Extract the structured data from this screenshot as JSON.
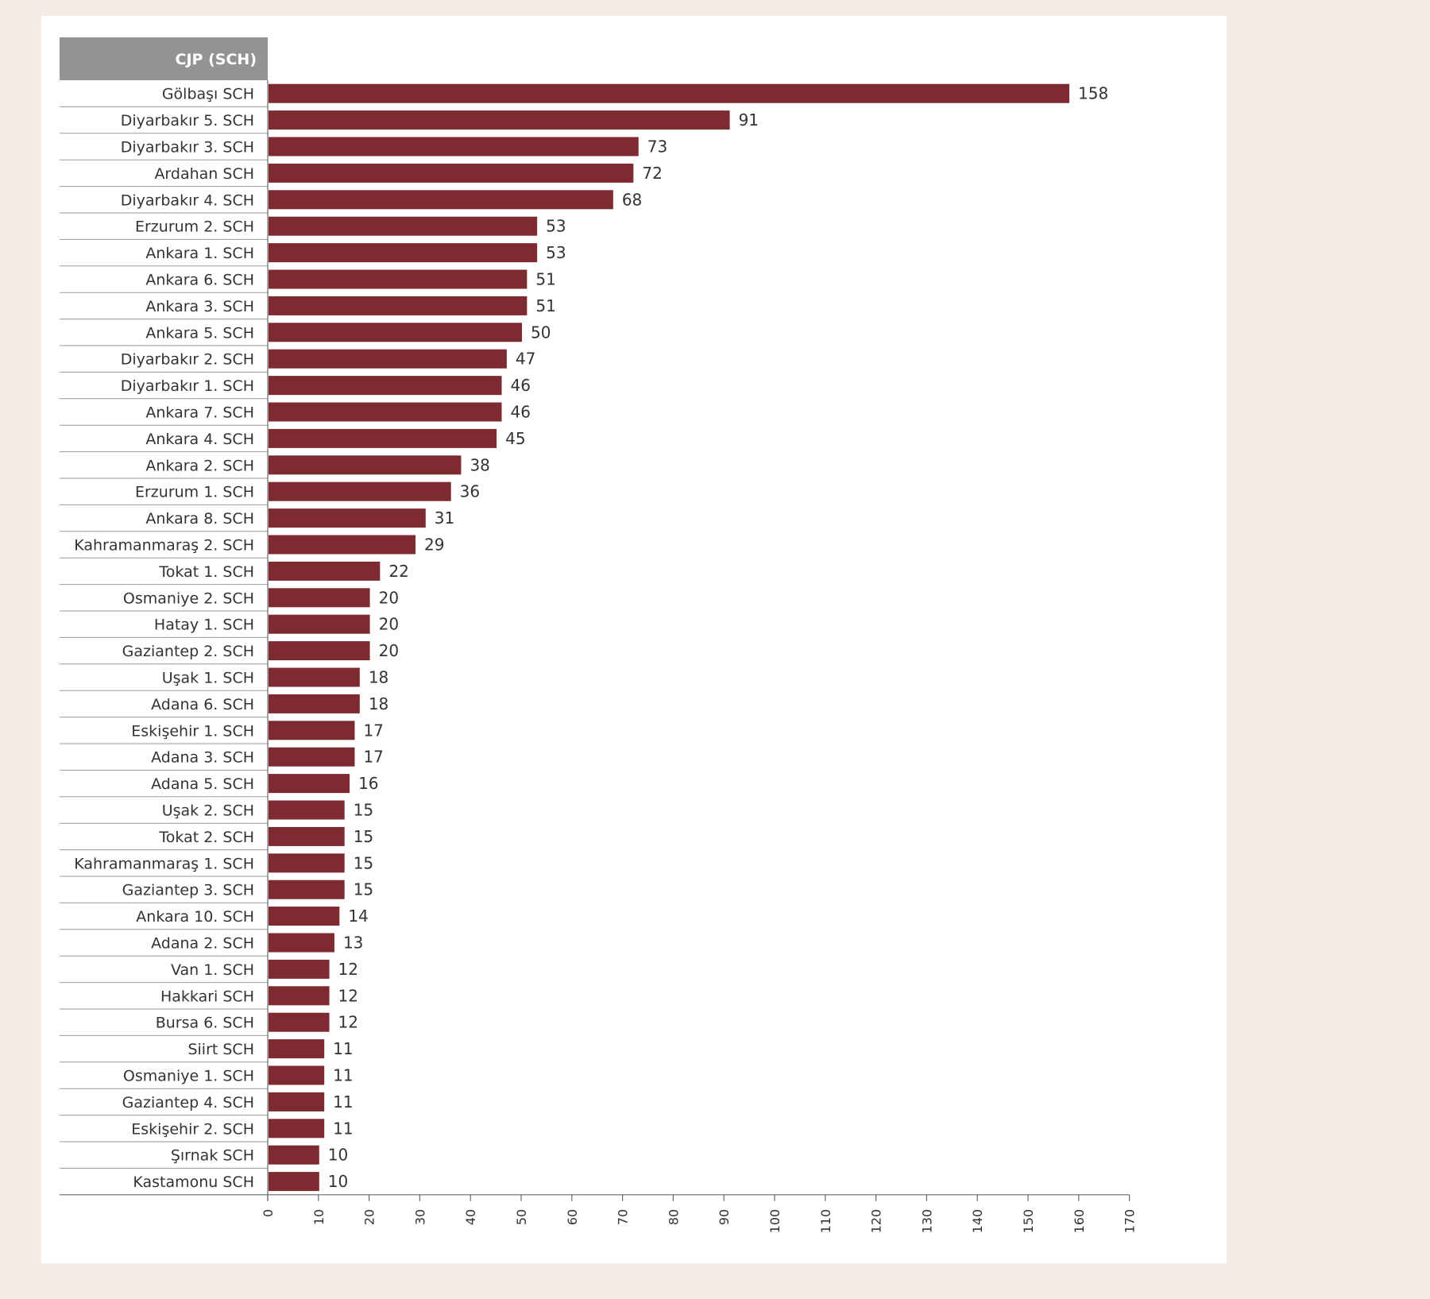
{
  "chart_data": {
    "type": "bar",
    "orientation": "horizontal",
    "header": "CJP (SCH)",
    "categories": [
      "Gölbaşı SCH",
      "Diyarbakır 5. SCH",
      "Diyarbakır 3. SCH",
      "Ardahan SCH",
      "Diyarbakır 4. SCH",
      "Erzurum 2. SCH",
      "Ankara 1. SCH",
      "Ankara 6. SCH",
      "Ankara 3. SCH",
      "Ankara 5. SCH",
      "Diyarbakır 2. SCH",
      "Diyarbakır 1. SCH",
      "Ankara 7. SCH",
      "Ankara 4. SCH",
      "Ankara 2. SCH",
      "Erzurum 1. SCH",
      "Ankara 8. SCH",
      "Kahramanmaraş 2. SCH",
      "Tokat 1. SCH",
      "Osmaniye 2. SCH",
      "Hatay 1. SCH",
      "Gaziantep 2. SCH",
      "Uşak 1. SCH",
      "Adana 6. SCH",
      "Eskişehir 1. SCH",
      "Adana 3. SCH",
      "Adana 5. SCH",
      "Uşak 2. SCH",
      "Tokat 2. SCH",
      "Kahramanmaraş 1. SCH",
      "Gaziantep 3. SCH",
      "Ankara 10. SCH",
      "Adana 2. SCH",
      "Van 1. SCH",
      "Hakkari SCH",
      "Bursa 6. SCH",
      "Siirt SCH",
      "Osmaniye 1. SCH",
      "Gaziantep 4. SCH",
      "Eskişehir 2. SCH",
      "Şırnak SCH",
      "Kastamonu SCH"
    ],
    "values": [
      158,
      91,
      73,
      72,
      68,
      53,
      53,
      51,
      51,
      50,
      47,
      46,
      46,
      45,
      38,
      36,
      31,
      29,
      22,
      20,
      20,
      20,
      18,
      18,
      17,
      17,
      16,
      15,
      15,
      15,
      15,
      14,
      13,
      12,
      12,
      12,
      11,
      11,
      11,
      11,
      10,
      10
    ],
    "xlim": [
      0,
      170
    ],
    "x_ticks": [
      0,
      10,
      20,
      30,
      40,
      50,
      60,
      70,
      80,
      90,
      100,
      110,
      120,
      130,
      140,
      150,
      160,
      170
    ],
    "bar_color": "#7d2a31",
    "header_color": "#939393",
    "grid": false
  }
}
